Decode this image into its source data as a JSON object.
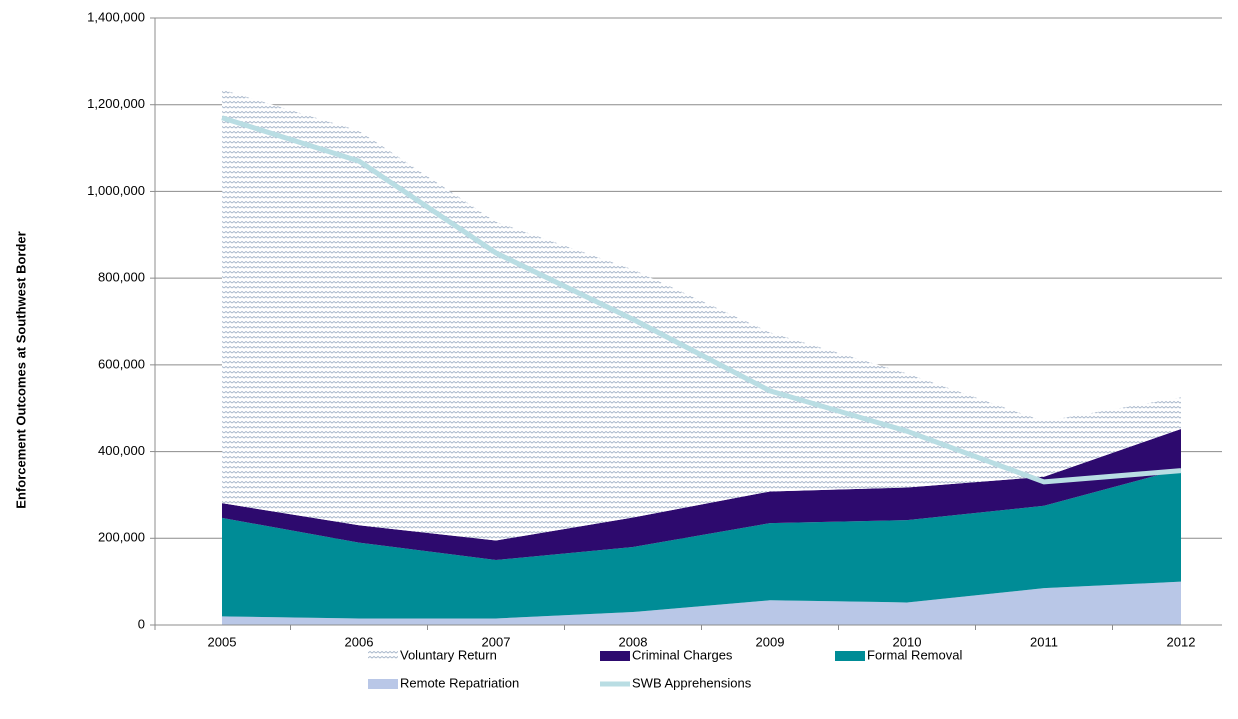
{
  "chart_data": {
    "type": "stacked-area",
    "y_label": "Enforcement Outcomes at Southwest Border",
    "categories": [
      "2005",
      "2006",
      "2007",
      "2008",
      "2009",
      "2010",
      "2011",
      "2012"
    ],
    "series": [
      {
        "name": "Remote Repatriation",
        "color": "#b9c7e7",
        "values": [
          20000,
          15000,
          15000,
          30000,
          57000,
          52000,
          85000,
          100000
        ]
      },
      {
        "name": "Formal Removal",
        "color": "#008c96",
        "values": [
          227000,
          175000,
          135000,
          150000,
          178000,
          190000,
          190000,
          260000
        ]
      },
      {
        "name": "Criminal Charges",
        "color": "#2d0a6e",
        "values": [
          34000,
          40000,
          45000,
          68000,
          73000,
          75000,
          67000,
          92000
        ]
      },
      {
        "name": "Voluntary Return",
        "color": "#b4c2d4",
        "pattern": true,
        "values": [
          954000,
          910000,
          735000,
          572000,
          367000,
          263000,
          128000,
          73000
        ]
      },
      {
        "name": "SWB Apprehensions",
        "color": "#b9dde3",
        "kind": "line",
        "values": [
          1170000,
          1070000,
          858000,
          705000,
          540000,
          447000,
          330000,
          356000
        ]
      }
    ],
    "ylim": [
      0,
      1400000
    ],
    "yticks": [
      0,
      {
        "value": 200000,
        "label": "200,000"
      },
      {
        "value": 400000,
        "label": "400,000"
      },
      {
        "value": 600000,
        "label": "600,000"
      },
      {
        "value": 800000,
        "label": "800,000"
      },
      {
        "value": 1000000,
        "label": "1,000,000"
      },
      {
        "value": 1200000,
        "label": "1,200,000"
      },
      {
        "value": 1400000,
        "label": "1,400,000"
      }
    ],
    "grid": true
  }
}
